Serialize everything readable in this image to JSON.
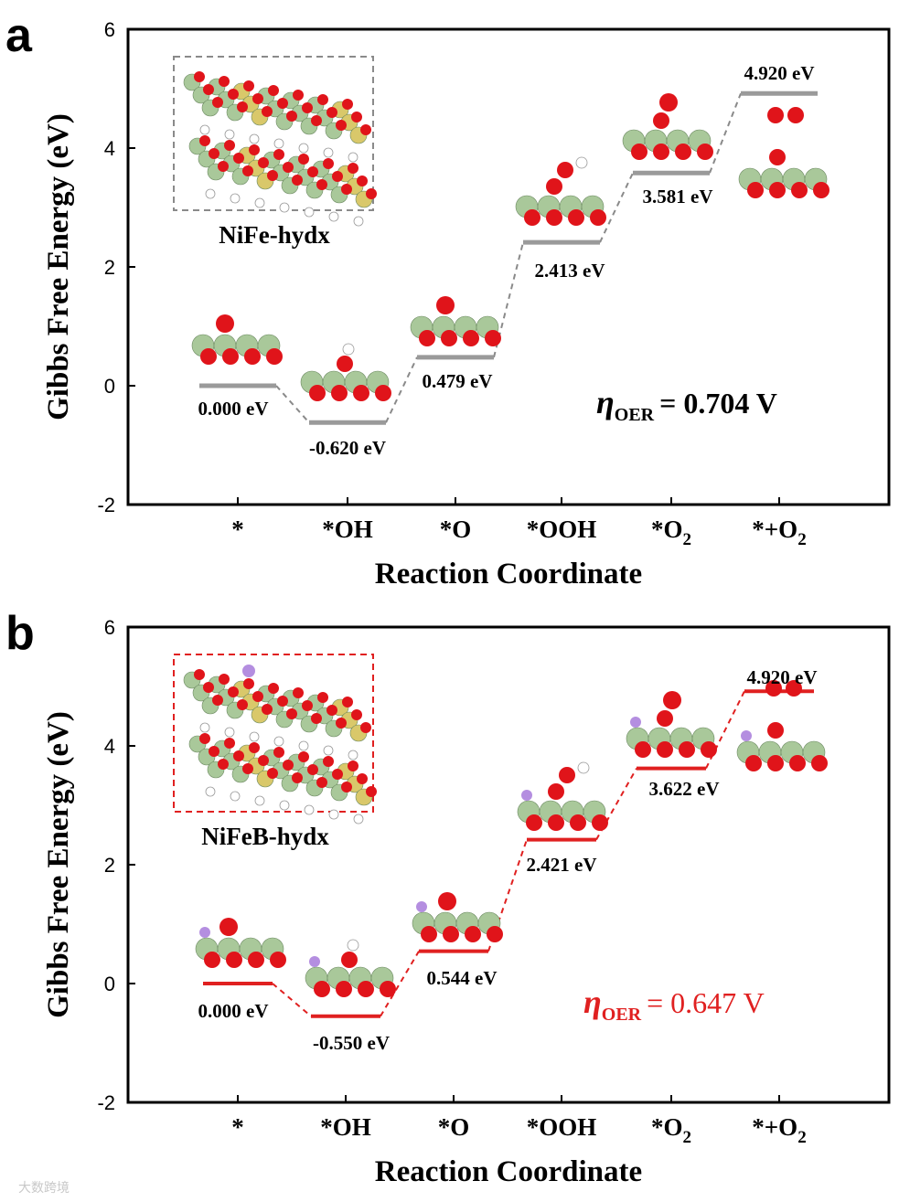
{
  "chart_data": [
    {
      "type": "line",
      "panel": "a",
      "title": "",
      "xlabel": "Reaction Coordinate",
      "ylabel": "Gibbs Free Energy (eV)",
      "ylim": [
        -2,
        6
      ],
      "yticks": [
        "-2",
        "0",
        "2",
        "4",
        "6"
      ],
      "categories": [
        {
          "main": "*",
          "sub": ""
        },
        {
          "main": "*OH",
          "sub": ""
        },
        {
          "main": "*O",
          "sub": ""
        },
        {
          "main": "*OOH",
          "sub": ""
        },
        {
          "main": "*O",
          "sub": "2"
        },
        {
          "main": "*+O",
          "sub": "2"
        }
      ],
      "values": [
        0.0,
        -0.62,
        0.479,
        2.413,
        3.581,
        4.92
      ],
      "energy_labels": [
        "0.000 eV",
        "-0.620 eV",
        "0.479 eV",
        "2.413 eV",
        "3.581 eV",
        "4.920 eV"
      ],
      "structure_caption": "NiFe-hydx",
      "overpotential": {
        "symbol": "η",
        "subscript": "OER",
        "text": "= 0.704 V"
      },
      "level_color": "#9a9a9a",
      "connector_color": "#8a8a8a",
      "box_color": "#8a8a8a"
    },
    {
      "type": "line",
      "panel": "b",
      "title": "",
      "xlabel": "Reaction Coordinate",
      "ylabel": "Gibbs Free Energy (eV)",
      "ylim": [
        -2,
        6
      ],
      "yticks": [
        "-2",
        "0",
        "2",
        "4",
        "6"
      ],
      "categories": [
        {
          "main": "*",
          "sub": ""
        },
        {
          "main": "*OH",
          "sub": ""
        },
        {
          "main": "*O",
          "sub": ""
        },
        {
          "main": "*OOH",
          "sub": ""
        },
        {
          "main": "*O",
          "sub": "2"
        },
        {
          "main": "*+O",
          "sub": "2"
        }
      ],
      "values": [
        0.0,
        -0.55,
        0.544,
        2.421,
        3.622,
        4.92
      ],
      "energy_labels": [
        "0.000 eV",
        "-0.550 eV",
        "0.544 eV",
        "2.421 eV",
        "3.622 eV",
        "4.920 eV"
      ],
      "structure_caption": "NiFeB-hydx",
      "overpotential": {
        "symbol": "η",
        "subscript": "OER",
        "text": "= 0.647 V"
      },
      "level_color": "#e02020",
      "connector_color": "#e02020",
      "box_color": "#e02020"
    }
  ],
  "watermark": "大数跨境",
  "atom_colors": {
    "oxygen": "#e0141a",
    "nickel": "#a9c89a",
    "iron": "#d9c86a",
    "hydrogen": "#ffffff",
    "boron": "#b48ee0"
  }
}
